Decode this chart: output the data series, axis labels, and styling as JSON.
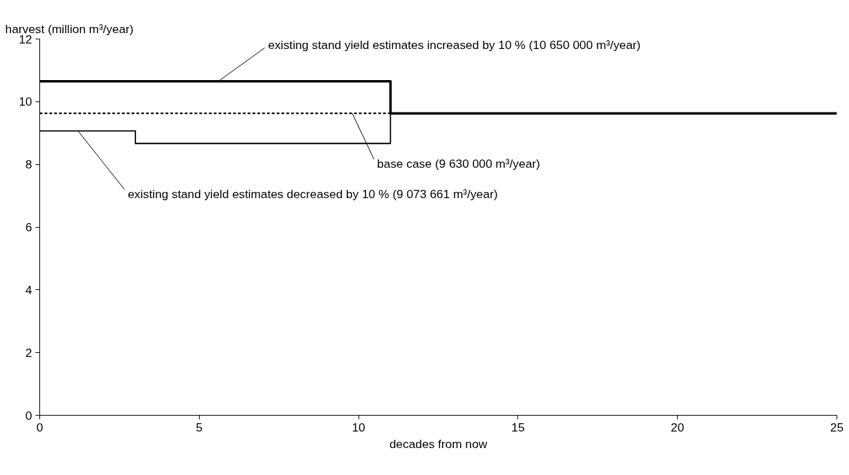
{
  "chart_data": {
    "type": "step",
    "xlabel": "decades from now",
    "ylabel": "harvest (million m³/year)",
    "xlim": [
      0,
      25
    ],
    "xticks": [
      0,
      5,
      10,
      15,
      20,
      25
    ],
    "ylim": [
      0,
      12
    ],
    "yticks": [
      0,
      2,
      4,
      6,
      8,
      10,
      12
    ],
    "grid": false,
    "series": [
      {
        "color": "#000000",
        "x": [
          0,
          11,
          25
        ],
        "values": [
          10.65,
          9.63,
          9.63
        ],
        "line_style": "solid"
      },
      {
        "color": "#000000",
        "x": [
          0,
          3,
          11
        ],
        "values": [
          9.07,
          8.67,
          9.63
        ],
        "line_style": "solid"
      },
      {
        "type": "line",
        "color": "#000000",
        "x": [
          0,
          11
        ],
        "values": [
          9.63,
          9.63
        ],
        "line_style": "dashed"
      }
    ],
    "annotations": [
      {
        "text": "existing stand yield estimates increased by 10 % (10 650 000 m³/year)",
        "x": 5.6,
        "y": 10.65
      },
      {
        "text": "base case (9 630 000 m³/year)",
        "x": 9.8,
        "y": 9.63
      },
      {
        "text": "existing stand yield estimates decreased by 10 % (9 073 661 m³/year)",
        "x": 1.2,
        "y": 9.07
      }
    ]
  }
}
